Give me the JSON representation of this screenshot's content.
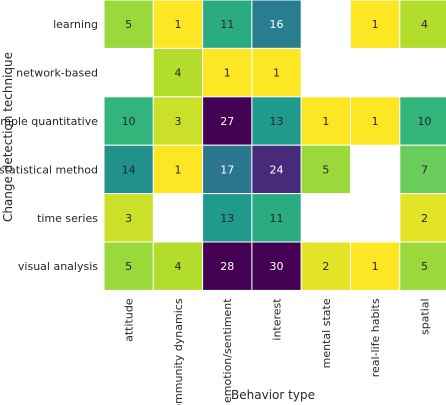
{
  "chart_data": {
    "type": "heatmap",
    "xlabel": "Behavior type",
    "ylabel": "Change detection technique",
    "x_categories": [
      "attitude",
      "community dynamics",
      "emotion/sentiment",
      "interest",
      "mental state",
      "real-life habits",
      "spatial"
    ],
    "y_categories": [
      "learning",
      "network-based",
      "simple quantitative",
      "statistical method",
      "time series",
      "visual analysis"
    ],
    "values": [
      [
        5,
        1,
        11,
        16,
        null,
        1,
        4
      ],
      [
        null,
        4,
        1,
        1,
        null,
        null,
        null
      ],
      [
        10,
        3,
        27,
        13,
        1,
        1,
        10
      ],
      [
        14,
        1,
        17,
        24,
        5,
        null,
        7
      ],
      [
        3,
        null,
        13,
        11,
        null,
        null,
        2
      ],
      [
        5,
        4,
        28,
        30,
        2,
        1,
        5
      ]
    ],
    "colormap": "viridis_r",
    "value_range": [
      1,
      30
    ],
    "grid": false,
    "legend": "none",
    "light_text_color": "#ffffff",
    "dark_text_color": "#262626"
  }
}
